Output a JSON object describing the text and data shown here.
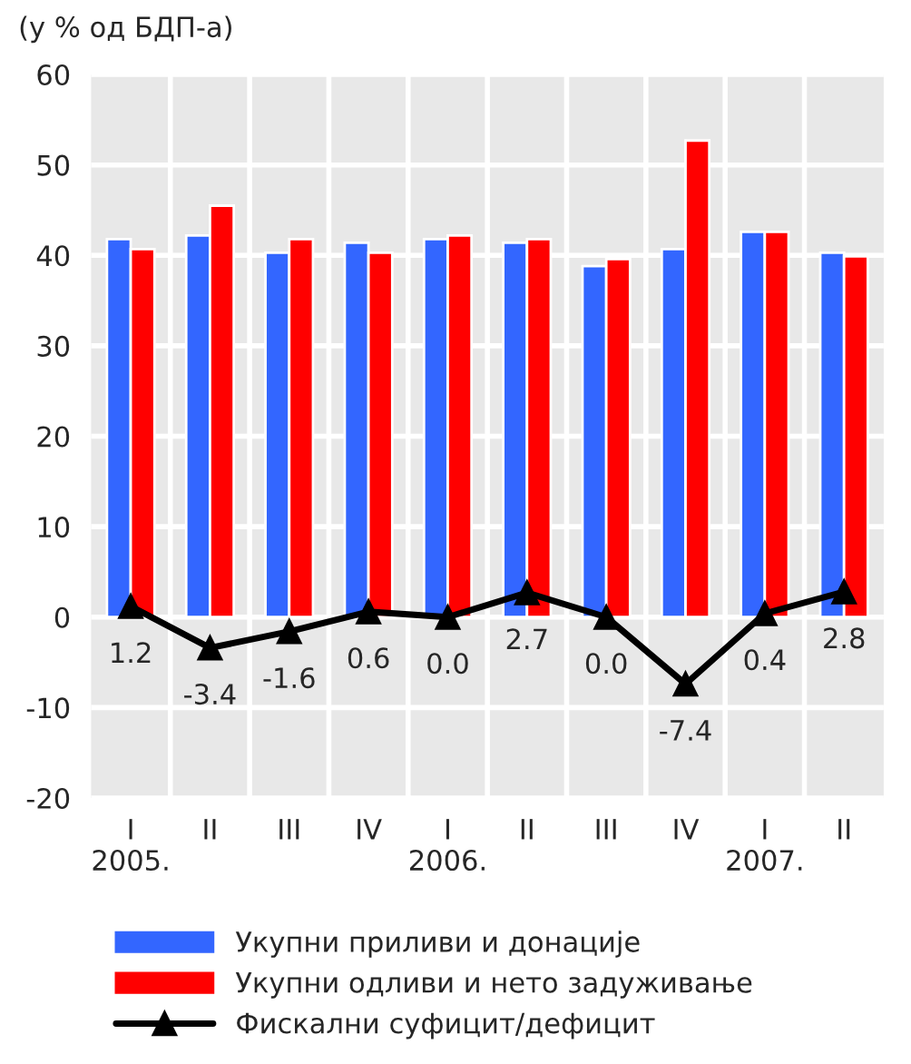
{
  "chart_data": {
    "type": "bar",
    "title": "(у % од БДП-а)",
    "categories": [
      "I\n2005.",
      "II",
      "III",
      "IV",
      "I\n2006.",
      "II",
      "III",
      "IV",
      "I\n2007.",
      "II"
    ],
    "series": [
      {
        "name": "Укупни приливи и донације",
        "color": "#3366ff",
        "values": [
          41.8,
          42.2,
          40.3,
          41.4,
          41.8,
          41.4,
          38.8,
          40.7,
          42.6,
          40.3
        ]
      },
      {
        "name": "Укупни одливи и нето задуживање",
        "color": "#ff0000",
        "values": [
          40.7,
          45.5,
          41.8,
          40.3,
          42.2,
          41.8,
          39.6,
          52.7,
          42.6,
          39.9
        ]
      },
      {
        "name": "Фискални суфицит/дефицит",
        "type": "line",
        "color": "#000000",
        "marker": "triangle",
        "values": [
          1.2,
          -3.4,
          -1.6,
          0.6,
          0,
          2.7,
          0,
          -7.4,
          0.4,
          2.8
        ],
        "value_labels": [
          "1.2",
          "-3.4",
          "-1.6",
          "0.6",
          "0.0",
          "2.7",
          "0.0",
          "-7.4",
          "0.4",
          "2.8"
        ]
      }
    ],
    "ylim": [
      -20,
      60
    ],
    "yticks": [
      -20,
      -10,
      0,
      10,
      20,
      30,
      40,
      50,
      60
    ],
    "grid": true,
    "legend": "bottom"
  }
}
